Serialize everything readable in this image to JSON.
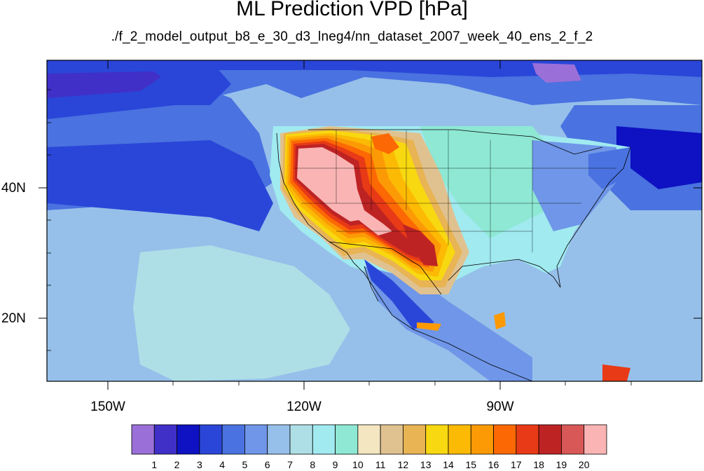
{
  "title": "ML Prediction VPD [hPa]",
  "subtitle": "./f_2_model_output_b8_e_30_d3_lneg4/nn_dataset_2007_week_40_ens_2_f_2",
  "map": {
    "longitude_labels": [
      "150W",
      "120W",
      "90W"
    ],
    "latitude_labels": [
      "40N",
      "20N"
    ]
  },
  "colorbar": {
    "labels": [
      "1",
      "2",
      "3",
      "4",
      "5",
      "6",
      "7",
      "8",
      "9",
      "10",
      "11",
      "12",
      "13",
      "14",
      "15",
      "16",
      "17",
      "18",
      "19",
      "20"
    ],
    "colors": [
      "#9a70d8",
      "#4030c8",
      "#0e12c2",
      "#2a46d8",
      "#4a72e0",
      "#6f96e8",
      "#96c0ea",
      "#aedfe6",
      "#a0eaf0",
      "#8ee8d4",
      "#f3e6c0",
      "#e0c290",
      "#e8b454",
      "#f8d810",
      "#fcba04",
      "#fc9a06",
      "#fc6804",
      "#e83a16",
      "#be2324",
      "#d85858",
      "#fab4b4"
    ]
  }
}
